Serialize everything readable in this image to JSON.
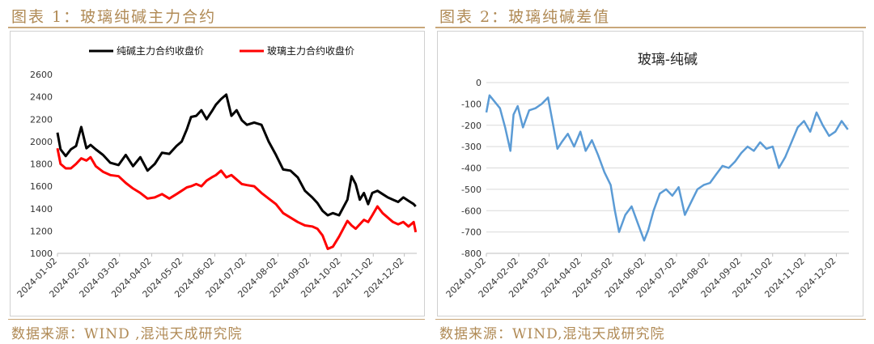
{
  "figures": [
    {
      "caption": "图表 1：玻璃纯碱主力合约",
      "source": "数据来源：WIND ,混沌天成研究院"
    },
    {
      "caption": "图表 2：玻璃纯碱差值",
      "source": "数据来源：WIND,混沌天成研究院"
    }
  ],
  "chart_data": [
    {
      "type": "line",
      "title": "",
      "legend_position": "top",
      "x_ticks": [
        "2024-01-02",
        "2024-02-02",
        "2024-03-02",
        "2024-04-02",
        "2024-05-02",
        "2024-06-02",
        "2024-07-02",
        "2024-08-02",
        "2024-09-02",
        "2024-10-02",
        "2024-11-02",
        "2024-12-02"
      ],
      "ylim": [
        1000,
        2600
      ],
      "y_ticks": [
        1000,
        1200,
        1400,
        1600,
        1800,
        2000,
        2200,
        2400,
        2600
      ],
      "grid": false,
      "series": [
        {
          "name": "纯碱主力合约收盘价",
          "color": "#000000",
          "x": [
            "2024-01-02",
            "2024-01-05",
            "2024-01-10",
            "2024-01-15",
            "2024-01-20",
            "2024-01-25",
            "2024-01-30",
            "2024-02-03",
            "2024-02-08",
            "2024-02-15",
            "2024-02-22",
            "2024-03-01",
            "2024-03-08",
            "2024-03-15",
            "2024-03-22",
            "2024-03-29",
            "2024-04-05",
            "2024-04-12",
            "2024-04-19",
            "2024-04-26",
            "2024-05-01",
            "2024-05-06",
            "2024-05-10",
            "2024-05-15",
            "2024-05-20",
            "2024-05-25",
            "2024-05-30",
            "2024-06-03",
            "2024-06-08",
            "2024-06-13",
            "2024-06-18",
            "2024-06-23",
            "2024-06-28",
            "2024-07-03",
            "2024-07-10",
            "2024-07-17",
            "2024-07-24",
            "2024-07-31",
            "2024-08-07",
            "2024-08-14",
            "2024-08-21",
            "2024-08-28",
            "2024-09-04",
            "2024-09-09",
            "2024-09-14",
            "2024-09-19",
            "2024-09-24",
            "2024-09-30",
            "2024-10-08",
            "2024-10-12",
            "2024-10-16",
            "2024-10-20",
            "2024-10-24",
            "2024-10-28",
            "2024-11-01",
            "2024-11-06",
            "2024-11-11",
            "2024-11-16",
            "2024-11-21",
            "2024-11-26",
            "2024-12-01",
            "2024-12-06",
            "2024-12-11",
            "2024-12-13"
          ],
          "values": [
            2080,
            1930,
            1870,
            1930,
            1960,
            2130,
            1940,
            1970,
            1930,
            1880,
            1810,
            1790,
            1880,
            1780,
            1860,
            1740,
            1800,
            1900,
            1890,
            1960,
            2000,
            2110,
            2220,
            2230,
            2280,
            2200,
            2270,
            2330,
            2380,
            2420,
            2230,
            2280,
            2190,
            2150,
            2170,
            2150,
            2000,
            1880,
            1750,
            1740,
            1680,
            1560,
            1500,
            1450,
            1380,
            1340,
            1360,
            1340,
            1480,
            1690,
            1620,
            1480,
            1540,
            1440,
            1540,
            1560,
            1530,
            1500,
            1480,
            1460,
            1500,
            1470,
            1440,
            1420
          ]
        },
        {
          "name": "玻璃主力合约收盘价",
          "color": "#ff0000",
          "x": [
            "2024-01-02",
            "2024-01-05",
            "2024-01-10",
            "2024-01-15",
            "2024-01-20",
            "2024-01-25",
            "2024-01-30",
            "2024-02-03",
            "2024-02-08",
            "2024-02-15",
            "2024-02-22",
            "2024-03-01",
            "2024-03-08",
            "2024-03-15",
            "2024-03-22",
            "2024-03-29",
            "2024-04-05",
            "2024-04-12",
            "2024-04-19",
            "2024-04-26",
            "2024-05-01",
            "2024-05-06",
            "2024-05-10",
            "2024-05-15",
            "2024-05-20",
            "2024-05-25",
            "2024-05-30",
            "2024-06-03",
            "2024-06-08",
            "2024-06-13",
            "2024-06-18",
            "2024-06-23",
            "2024-06-28",
            "2024-07-03",
            "2024-07-10",
            "2024-07-17",
            "2024-07-24",
            "2024-07-31",
            "2024-08-07",
            "2024-08-14",
            "2024-08-21",
            "2024-08-28",
            "2024-09-04",
            "2024-09-09",
            "2024-09-14",
            "2024-09-19",
            "2024-09-24",
            "2024-09-30",
            "2024-10-08",
            "2024-10-12",
            "2024-10-16",
            "2024-10-20",
            "2024-10-24",
            "2024-10-28",
            "2024-11-01",
            "2024-11-06",
            "2024-11-11",
            "2024-11-16",
            "2024-11-21",
            "2024-11-26",
            "2024-12-01",
            "2024-12-06",
            "2024-12-11",
            "2024-12-13"
          ],
          "values": [
            1940,
            1800,
            1760,
            1760,
            1800,
            1850,
            1830,
            1860,
            1780,
            1730,
            1700,
            1690,
            1630,
            1580,
            1540,
            1490,
            1500,
            1530,
            1490,
            1530,
            1560,
            1590,
            1600,
            1620,
            1600,
            1650,
            1680,
            1700,
            1740,
            1680,
            1700,
            1660,
            1620,
            1610,
            1600,
            1540,
            1490,
            1440,
            1360,
            1320,
            1280,
            1250,
            1240,
            1220,
            1160,
            1040,
            1060,
            1150,
            1290,
            1250,
            1220,
            1260,
            1300,
            1280,
            1340,
            1420,
            1360,
            1320,
            1280,
            1260,
            1280,
            1240,
            1280,
            1190
          ]
        }
      ]
    },
    {
      "type": "line",
      "title": "玻璃-纯碱",
      "x_ticks": [
        "2024-01-02",
        "2024-02-02",
        "2024-03-02",
        "2024-04-02",
        "2024-05-02",
        "2024-06-02",
        "2024-07-02",
        "2024-08-02",
        "2024-09-02",
        "2024-10-02",
        "2024-11-02",
        "2024-12-02"
      ],
      "ylim": [
        -800,
        0
      ],
      "y_ticks": [
        0,
        -100,
        -200,
        -300,
        -400,
        -500,
        -600,
        -700,
        -800
      ],
      "grid": true,
      "series": [
        {
          "color": "#5b9bd5",
          "x": [
            "2024-01-02",
            "2024-01-05",
            "2024-01-10",
            "2024-01-15",
            "2024-01-20",
            "2024-01-25",
            "2024-01-28",
            "2024-02-01",
            "2024-02-06",
            "2024-02-12",
            "2024-02-18",
            "2024-02-24",
            "2024-03-01",
            "2024-03-06",
            "2024-03-10",
            "2024-03-14",
            "2024-03-20",
            "2024-03-26",
            "2024-04-01",
            "2024-04-06",
            "2024-04-12",
            "2024-04-18",
            "2024-04-24",
            "2024-04-30",
            "2024-05-04",
            "2024-05-08",
            "2024-05-14",
            "2024-05-20",
            "2024-05-26",
            "2024-06-01",
            "2024-06-05",
            "2024-06-10",
            "2024-06-16",
            "2024-06-22",
            "2024-06-28",
            "2024-07-04",
            "2024-07-10",
            "2024-07-16",
            "2024-07-22",
            "2024-07-28",
            "2024-08-03",
            "2024-08-09",
            "2024-08-15",
            "2024-08-21",
            "2024-08-27",
            "2024-09-02",
            "2024-09-08",
            "2024-09-14",
            "2024-09-20",
            "2024-09-26",
            "2024-10-02",
            "2024-10-08",
            "2024-10-14",
            "2024-10-20",
            "2024-10-26",
            "2024-11-01",
            "2024-11-07",
            "2024-11-13",
            "2024-11-19",
            "2024-11-25",
            "2024-12-01",
            "2024-12-07",
            "2024-12-13"
          ],
          "values": [
            -140,
            -60,
            -90,
            -120,
            -210,
            -320,
            -150,
            -110,
            -210,
            -130,
            -120,
            -100,
            -70,
            -200,
            -310,
            -280,
            -240,
            -300,
            -230,
            -320,
            -270,
            -340,
            -420,
            -480,
            -600,
            -700,
            -620,
            -580,
            -660,
            -740,
            -690,
            -600,
            -520,
            -500,
            -530,
            -490,
            -620,
            -560,
            -500,
            -480,
            -470,
            -430,
            -390,
            -400,
            -370,
            -330,
            -300,
            -320,
            -280,
            -310,
            -300,
            -400,
            -350,
            -280,
            -210,
            -180,
            -230,
            -140,
            -200,
            -250,
            -230,
            -180,
            -220
          ]
        }
      ]
    }
  ]
}
